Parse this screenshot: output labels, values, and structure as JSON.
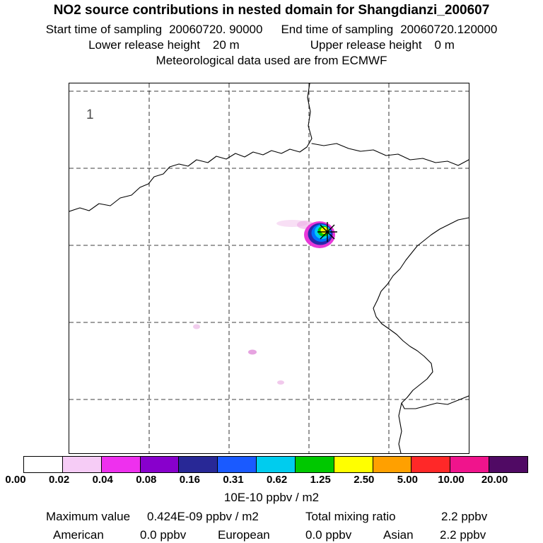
{
  "header": {
    "title": "NO2 source contributions in nested domain for Shangdianzi_200607",
    "sampling_start_label": "Start time of sampling",
    "sampling_start_value": "20060720. 90000",
    "sampling_end_label": "End time of sampling",
    "sampling_end_value": "20060720.120000",
    "lower_release_label": "Lower release height",
    "lower_release_value": "20 m",
    "upper_release_label": "Upper release height",
    "upper_release_value": "0 m",
    "met_source_line": "Meteorological data used are from ECMWF"
  },
  "map": {
    "domain_number": "1"
  },
  "colorbar": {
    "segment_colors": [
      "#ffffff",
      "#f6ccf6",
      "#ee30ee",
      "#8800cc",
      "#282896",
      "#1a5aff",
      "#00ccee",
      "#00c800",
      "#ffff00",
      "#ffa000",
      "#ff2828",
      "#f0148c",
      "#500a64"
    ],
    "tick_labels": [
      "0.00",
      "0.02",
      "0.04",
      "0.08",
      "0.16",
      "0.31",
      "0.62",
      "1.25",
      "2.50",
      "5.00",
      "10.00",
      "20.00"
    ],
    "units": "10E-10 ppbv / m2"
  },
  "footer": {
    "max_label": "Maximum value",
    "max_value": "0.424E-09 ppbv / m2",
    "mixing_label": "Total mixing ratio",
    "mixing_value": "2.2 ppbv",
    "regions": [
      {
        "name": "American",
        "value": "0.0 ppbv"
      },
      {
        "name": "European",
        "value": "0.0 ppbv"
      },
      {
        "name": "Asian",
        "value": "2.2 ppbv"
      }
    ]
  },
  "chart_data": {
    "type": "heatmap",
    "title": "NO2 source contributions in nested domain for Shangdianzi_200607",
    "subtitle_lines": [
      "Start time of sampling 20060720. 90000   End time of sampling 20060720.120000",
      "Lower release height 20 m   Upper release height 0 m",
      "Meteorological data used are from ECMWF"
    ],
    "map_panel_label": "1",
    "grid": "dashed latitude/longitude graticule, 4 vertical x 5 horizontal lines",
    "legend_position": "horizontal colorbar at bottom",
    "colorbar_ticks": [
      0.0,
      0.02,
      0.04,
      0.08,
      0.16,
      0.31,
      0.62,
      1.25,
      2.5,
      5.0,
      10.0,
      20.0
    ],
    "colorbar_units": "10E-10 ppbv / m2",
    "maximum_value": "0.424E-09 ppbv / m2",
    "total_mixing_ratio_ppbv": 2.2,
    "source_contributions_ppbv": {
      "American": 0.0,
      "European": 0.0,
      "Asian": 2.2
    },
    "features": [
      "single compact concentration plume at the receptor asterisk marker right of map center, concentric rings magenta-purple-blue-cyan-green with yellow peak (~1.25-2.50 units)",
      "faint pink trace streak extending west of the plume",
      "three faint pink specks in lower-left quadrant of map",
      "coastlines of the Bohai Sea region and a border line across the upper-left reaching the top edge"
    ]
  }
}
